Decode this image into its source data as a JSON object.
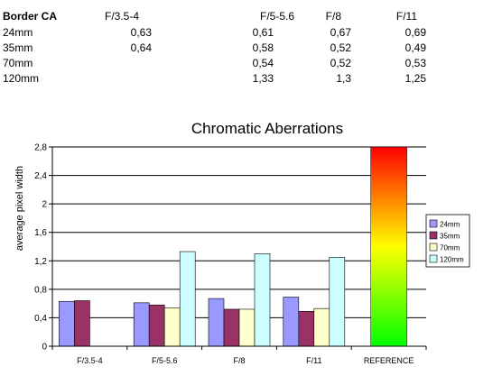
{
  "table": {
    "header": [
      "Border CA",
      "F/3.5-4",
      "F/5-5.6",
      "F/8",
      "F/11"
    ],
    "rows": [
      [
        "24mm",
        "0,63",
        "0,61",
        "0,67",
        "0,69"
      ],
      [
        "35mm",
        "0,64",
        "0,58",
        "0,52",
        "0,49"
      ],
      [
        "70mm",
        "",
        "0,54",
        "0,52",
        "0,53"
      ],
      [
        "120mm",
        "",
        "1,33",
        "1,3",
        "1,25"
      ]
    ]
  },
  "chart_data": {
    "type": "bar",
    "title": "Chromatic Aberrations",
    "xlabel": "",
    "ylabel": "average pixel width",
    "ylim": [
      0,
      2.8
    ],
    "yticks": [
      "0",
      "0,4",
      "0,8",
      "1,2",
      "1,6",
      "2",
      "2,4",
      "2,8"
    ],
    "categories": [
      "F/3.5-4",
      "F/5-5.6",
      "F/8",
      "F/11",
      "REFERENCE"
    ],
    "series": [
      {
        "name": "24mm",
        "color": "#9999ff",
        "values": [
          0.63,
          0.61,
          0.67,
          0.69,
          null
        ]
      },
      {
        "name": "35mm",
        "color": "#993366",
        "values": [
          0.64,
          0.58,
          0.52,
          0.49,
          null
        ]
      },
      {
        "name": "70mm",
        "color": "#ffffcc",
        "values": [
          null,
          0.54,
          0.52,
          0.53,
          null
        ]
      },
      {
        "name": "120mm",
        "color": "#ccffff",
        "values": [
          null,
          1.33,
          1.3,
          1.25,
          null
        ]
      }
    ],
    "reference_bar": {
      "category": "REFERENCE",
      "value": 2.8,
      "gradient": [
        "#ff0000",
        "#ffff00",
        "#00ff00"
      ]
    },
    "grid": true,
    "legend": "right"
  }
}
